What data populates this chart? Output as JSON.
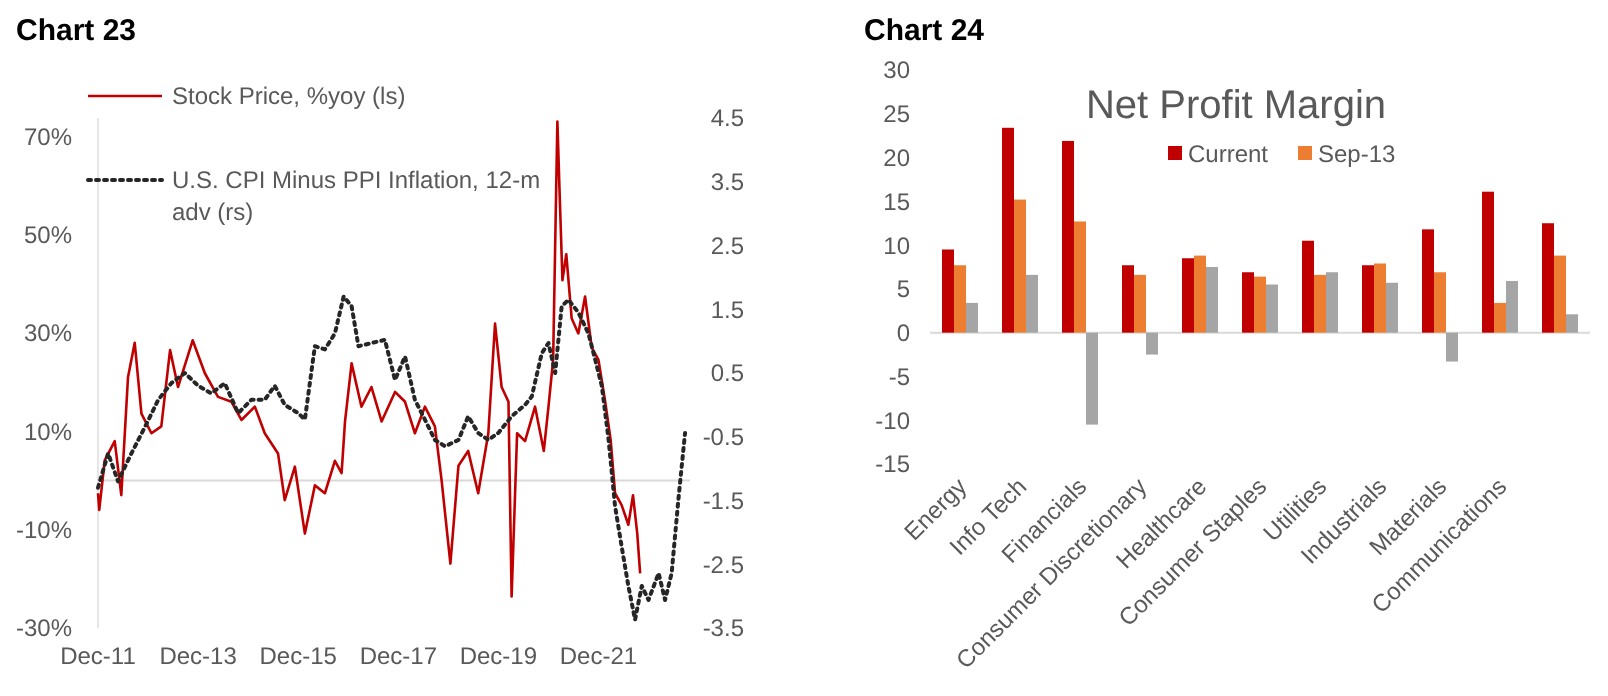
{
  "chart_data": [
    {
      "type": "line",
      "title": "Chart 23",
      "legend": "top left",
      "xlim": [
        "2011-12-01",
        "2023-09-30"
      ],
      "xticks": [
        {
          "value": "2011-12-01",
          "label": "Dec-11"
        },
        {
          "value": "2013-12-01",
          "label": "Dec-13"
        },
        {
          "value": "2015-12-01",
          "label": "Dec-15"
        },
        {
          "value": "2017-12-01",
          "label": "Dec-17"
        },
        {
          "value": "2019-12-01",
          "label": "Dec-19"
        },
        {
          "value": "2021-12-01",
          "label": "Dec-21"
        }
      ],
      "ylim": [
        -30,
        73.7
      ],
      "yticks": [
        {
          "value": -30,
          "label": "-30%"
        },
        {
          "value": -10,
          "label": "-10%"
        },
        {
          "value": 10,
          "label": "10%"
        },
        {
          "value": 30,
          "label": "30%"
        },
        {
          "value": 50,
          "label": "50%"
        },
        {
          "value": 70,
          "label": "70%"
        }
      ],
      "y2lim": [
        -3.5,
        4.5
      ],
      "y2ticks": [
        -3.5,
        -2.5,
        -1.5,
        -0.5,
        0.5,
        1.5,
        2.5,
        3.5,
        4.5
      ],
      "ref_lines": [
        {
          "axis": "y",
          "value": 0,
          "color": "#d9d9d9"
        }
      ],
      "series": [
        {
          "name": "Stock Price, %yoy (ls)",
          "color": "#c00000",
          "line_style": "solid",
          "x": [
            "2011-12-01",
            "2011-12-10",
            "2012-01-19",
            "2012-04-01",
            "2012-05-19",
            "2012-07-07",
            "2012-08-25",
            "2012-10-13",
            "2012-12-25",
            "2013-03-07",
            "2013-05-10",
            "2013-07-07",
            "2013-10-22",
            "2014-01-19",
            "2014-04-25",
            "2014-08-01",
            "2014-10-13",
            "2015-01-19",
            "2015-04-01",
            "2015-07-07",
            "2015-08-25",
            "2015-11-07",
            "2016-01-19",
            "2016-04-01",
            "2016-06-13",
            "2016-08-25",
            "2016-10-13",
            "2016-11-07",
            "2016-12-25",
            "2017-03-07",
            "2017-05-19",
            "2017-08-01",
            "2017-11-07",
            "2018-01-19",
            "2018-04-01",
            "2018-06-13",
            "2018-08-25",
            "2018-10-13",
            "2018-12-16",
            "2019-02-13",
            "2019-04-25",
            "2019-07-07",
            "2019-09-19",
            "2019-11-07",
            "2019-12-25",
            "2020-02-13",
            "2020-03-07",
            "2020-04-16",
            "2020-06-13",
            "2020-08-25",
            "2020-10-28",
            "2020-12-01",
            "2021-01-04",
            "2021-02-04",
            "2021-02-22",
            "2021-03-13",
            "2021-04-10",
            "2021-05-19",
            "2021-07-07",
            "2021-08-25",
            "2021-10-13",
            "2021-12-01",
            "2022-01-19",
            "2022-02-28",
            "2022-04-01",
            "2022-05-19",
            "2022-07-07",
            "2022-08-10",
            "2022-09-10",
            "2022-10-01"
          ],
          "values": [
            -2.6,
            -6,
            4.1,
            8,
            -3,
            21,
            28,
            13.6,
            9.6,
            11,
            26.5,
            19,
            28.5,
            21.8,
            17,
            16,
            12.3,
            15,
            9.6,
            5.5,
            -4,
            2.8,
            -10.8,
            -1,
            -2.6,
            4,
            1.5,
            12,
            23.8,
            15,
            19,
            12,
            18,
            16,
            9.6,
            15,
            11,
            0,
            -16.9,
            3,
            6,
            -2.6,
            9.6,
            31.9,
            19,
            16,
            -23.6,
            9.6,
            8,
            15,
            6,
            15,
            24.5,
            73,
            57,
            40.7,
            46,
            33,
            29.9,
            37.4,
            27,
            24.5,
            16,
            8.2,
            -2.6,
            -5,
            -9,
            -3,
            -10.8,
            -18.9
          ]
        },
        {
          "name": "U.S. CPI Minus PPI Inflation, 12-m adv (rs)",
          "color": "#262626",
          "line_style": "dotted",
          "axis": "y2",
          "x": [
            "2011-12-01",
            "2012-02-13",
            "2012-04-25",
            "2012-08-01",
            "2012-11-07",
            "2013-02-13",
            "2013-05-19",
            "2013-08-25",
            "2013-12-01",
            "2014-03-07",
            "2014-06-13",
            "2014-09-19",
            "2014-12-25",
            "2015-04-01",
            "2015-06-13",
            "2015-08-25",
            "2015-12-01",
            "2016-01-19",
            "2016-04-01",
            "2016-06-13",
            "2016-08-25",
            "2016-10-28",
            "2016-12-25",
            "2017-02-13",
            "2017-05-19",
            "2017-08-25",
            "2017-11-07",
            "2018-01-19",
            "2018-04-01",
            "2018-06-13",
            "2018-08-25",
            "2018-11-07",
            "2019-02-13",
            "2019-04-25",
            "2019-07-07",
            "2019-09-19",
            "2019-12-01",
            "2020-03-07",
            "2020-06-13",
            "2020-08-01",
            "2020-10-13",
            "2020-12-01",
            "2021-01-19",
            "2021-03-07",
            "2021-04-25",
            "2021-07-07",
            "2021-09-19",
            "2021-11-07",
            "2021-12-25",
            "2022-02-13",
            "2022-04-01",
            "2022-05-19",
            "2022-07-07",
            "2022-08-25",
            "2022-10-13",
            "2022-12-01",
            "2023-02-13",
            "2023-04-01",
            "2023-05-19",
            "2023-07-07",
            "2023-08-25"
          ],
          "values": [
            -1.3,
            -0.76,
            -1.2,
            -0.76,
            -0.35,
            0.08,
            0.34,
            0.5,
            0.3,
            0.18,
            0.34,
            -0.13,
            0.08,
            0.08,
            0.3,
            0,
            -0.13,
            -0.23,
            0.92,
            0.87,
            1.12,
            1.7,
            1.55,
            0.92,
            0.97,
            1.02,
            0.39,
            0.76,
            0.08,
            -0.23,
            -0.55,
            -0.65,
            -0.55,
            -0.18,
            -0.44,
            -0.55,
            -0.44,
            -0.18,
            0,
            0.13,
            0.81,
            0.97,
            0.5,
            1.54,
            1.65,
            1.45,
            1.12,
            0.71,
            0.3,
            -0.55,
            -1.59,
            -2.22,
            -2.84,
            -3.37,
            -2.84,
            -3.06,
            -2.64,
            -3.06,
            -2.64,
            -1.49,
            -0.44
          ]
        }
      ]
    },
    {
      "type": "bar",
      "title": "Chart 24",
      "subtitle": "Net Profit Margin",
      "legend": "top",
      "categories": [
        "Energy",
        "Info Tech",
        "Financials",
        "Consumer Discretionary",
        "Healthcare",
        "Consumer Staples",
        "Utilities",
        "Industrials",
        "Materials",
        "Communications",
        null
      ],
      "ylim": [
        -15,
        30
      ],
      "yticks": [
        -15,
        -10,
        -5,
        0,
        5,
        10,
        15,
        20,
        25,
        30
      ],
      "series": [
        {
          "name": "Current",
          "color": "#c00000",
          "values": [
            9.5,
            23.4,
            21.9,
            7.7,
            8.5,
            6.9,
            10.5,
            7.7,
            11.8,
            16.1,
            12.5
          ]
        },
        {
          "name": "Sep-13",
          "color": "#ed7d31",
          "values": [
            7.7,
            15.2,
            12.7,
            6.6,
            8.8,
            6.4,
            6.6,
            7.9,
            6.9,
            3.4,
            8.8
          ]
        },
        {
          "color": "#a5a5a5",
          "values": [
            3.4,
            6.6,
            -10.5,
            -2.5,
            7.5,
            5.5,
            6.9,
            5.7,
            -3.3,
            5.9,
            2.1
          ]
        }
      ]
    }
  ]
}
